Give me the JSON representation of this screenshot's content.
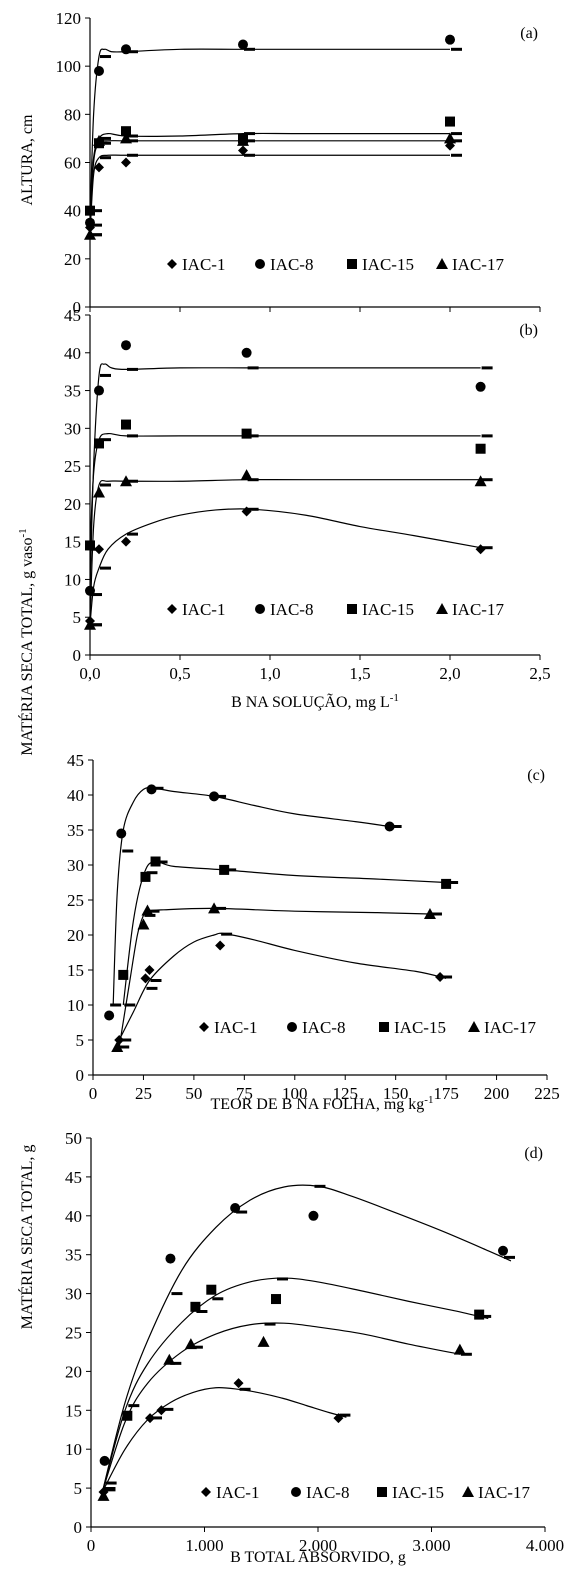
{
  "figure": {
    "ylabel_a": "ALTURA, cm",
    "ylabel_bc": "MATÉRIA SECA TOTAL, g vaso",
    "ylabel_bc_sup": "-1",
    "ylabel_d": "MATÉRIA SECA TOTAL, g",
    "xlabel_b": "B NA SOLUÇÃO, mg L",
    "xlabel_b_sup": "-1",
    "xlabel_c": "TEOR DE B NA FOLHA, mg kg",
    "xlabel_c_sup": "-1",
    "xlabel_d": "B TOTAL ABSORVIDO, g"
  },
  "chart_data": [
    {
      "id": "a",
      "panel_label": "(a)",
      "type": "scatter",
      "xlim": [
        0,
        2.5
      ],
      "ylim": [
        0,
        120
      ],
      "yticks": [
        "0",
        "20",
        "40",
        "60",
        "80",
        "100",
        "120"
      ],
      "xticks": [],
      "legend": "bottom-right",
      "series": [
        {
          "name": "IAC-1",
          "marker": "diamond",
          "x": [
            0.0,
            0.05,
            0.2,
            0.85,
            2.0
          ],
          "y": [
            33,
            58,
            60,
            65,
            67
          ],
          "fit_x": [
            0.0,
            0.02,
            0.05,
            0.1,
            0.2,
            0.5,
            0.85,
            1.2,
            2.0
          ],
          "fit_y": [
            30,
            55,
            62,
            63,
            63,
            63,
            63,
            63,
            63
          ]
        },
        {
          "name": "IAC-8",
          "marker": "circle",
          "x": [
            0.0,
            0.05,
            0.2,
            0.85,
            2.0
          ],
          "y": [
            35,
            98,
            107,
            109,
            111
          ],
          "fit_x": [
            0.0,
            0.02,
            0.05,
            0.08,
            0.12,
            0.2,
            0.5,
            0.85,
            1.2,
            2.0
          ],
          "fit_y": [
            34,
            80,
            104,
            107,
            106,
            106,
            107,
            107,
            107,
            107
          ]
        },
        {
          "name": "IAC-15",
          "marker": "square",
          "x": [
            0.0,
            0.05,
            0.2,
            0.85,
            2.0
          ],
          "y": [
            40,
            68,
            73,
            70,
            77
          ],
          "fit_x": [
            0.0,
            0.02,
            0.05,
            0.1,
            0.2,
            0.5,
            0.85,
            1.2,
            2.0
          ],
          "fit_y": [
            40,
            62,
            70,
            72,
            71,
            71,
            72,
            72,
            72
          ]
        },
        {
          "name": "IAC-17",
          "marker": "triangle",
          "x": [
            0.0,
            0.05,
            0.2,
            0.85,
            2.0
          ],
          "y": [
            30,
            69,
            70,
            69,
            70
          ],
          "fit_x": [
            0.0,
            0.02,
            0.05,
            0.1,
            0.2,
            0.5,
            0.85,
            1.2,
            2.0
          ],
          "fit_y": [
            30,
            60,
            68,
            69,
            69,
            69,
            69,
            69,
            69
          ]
        }
      ]
    },
    {
      "id": "b",
      "panel_label": "(b)",
      "type": "scatter",
      "xlim": [
        0,
        2.5
      ],
      "ylim": [
        0,
        45
      ],
      "yticks": [
        "0",
        "5",
        "10",
        "15",
        "20",
        "25",
        "30",
        "35",
        "40",
        "45"
      ],
      "xticks": [
        "0,0",
        "0,5",
        "1,0",
        "1,5",
        "2,0",
        "2,5"
      ],
      "legend": "bottom-right",
      "series": [
        {
          "name": "IAC-1",
          "marker": "diamond",
          "x": [
            0.0,
            0.05,
            0.2,
            0.87,
            2.17
          ],
          "y": [
            4.5,
            14,
            15,
            19,
            14
          ],
          "fit_x": [
            0.0,
            0.02,
            0.05,
            0.1,
            0.2,
            0.35,
            0.5,
            0.7,
            0.9,
            1.2,
            1.5,
            1.8,
            2.17
          ],
          "fit_y": [
            4,
            9,
            11.5,
            14,
            16,
            17.5,
            18.5,
            19.2,
            19.3,
            18.5,
            17,
            15.8,
            14.2
          ]
        },
        {
          "name": "IAC-8",
          "marker": "circle",
          "x": [
            0.0,
            0.05,
            0.2,
            0.87,
            2.17
          ],
          "y": [
            8.5,
            35,
            41,
            40,
            35.5
          ],
          "fit_x": [
            0.0,
            0.02,
            0.05,
            0.08,
            0.12,
            0.2,
            0.5,
            0.87,
            1.2,
            2.17
          ],
          "fit_y": [
            8,
            25,
            37,
            38.5,
            38,
            37.8,
            38,
            38,
            38,
            38
          ]
        },
        {
          "name": "IAC-15",
          "marker": "square",
          "x": [
            0.0,
            0.05,
            0.2,
            0.87,
            2.17
          ],
          "y": [
            14.5,
            28,
            30.5,
            29.3,
            27.3
          ],
          "fit_x": [
            0.0,
            0.02,
            0.05,
            0.1,
            0.2,
            0.5,
            0.87,
            1.2,
            2.17
          ],
          "fit_y": [
            14,
            24,
            28.5,
            29.3,
            29,
            29,
            29,
            29,
            29
          ]
        },
        {
          "name": "IAC-17",
          "marker": "triangle",
          "x": [
            0.0,
            0.05,
            0.2,
            0.87,
            2.17
          ],
          "y": [
            4,
            21.5,
            23,
            23.8,
            23
          ],
          "fit_x": [
            0.0,
            0.02,
            0.05,
            0.1,
            0.2,
            0.5,
            0.87,
            1.2,
            2.17
          ],
          "fit_y": [
            4,
            17,
            22.5,
            23,
            23,
            23,
            23.2,
            23.2,
            23.2
          ]
        }
      ]
    },
    {
      "id": "c",
      "panel_label": "(c)",
      "type": "scatter",
      "xlim": [
        0,
        225
      ],
      "ylim": [
        0,
        45
      ],
      "yticks": [
        "0",
        "5",
        "10",
        "15",
        "20",
        "25",
        "30",
        "35",
        "40",
        "45"
      ],
      "xticks": [
        "0",
        "25",
        "50",
        "75",
        "100",
        "125",
        "150",
        "175",
        "200",
        "225"
      ],
      "legend": "bottom-right",
      "series": [
        {
          "name": "IAC-1",
          "marker": "diamond",
          "x": [
            13,
            26,
            28,
            63,
            172
          ],
          "y": [
            5,
            13.8,
            15,
            18.5,
            14
          ],
          "fit_x": [
            13,
            20,
            28,
            40,
            50,
            60,
            65,
            80,
            100,
            130,
            160,
            175
          ],
          "fit_y": [
            5,
            9,
            13.5,
            17,
            19,
            20,
            20.2,
            19.3,
            17.8,
            16,
            14.8,
            13.8
          ]
        },
        {
          "name": "IAC-8",
          "marker": "circle",
          "x": [
            8,
            14,
            29,
            60,
            147
          ],
          "y": [
            8.5,
            34.5,
            40.8,
            39.8,
            35.5
          ],
          "fit_x": [
            10,
            12,
            15,
            20,
            25,
            30,
            40,
            60,
            80,
            100,
            130,
            147
          ],
          "fit_y": [
            10,
            26,
            35,
            39,
            40.8,
            41,
            40.5,
            39.8,
            38.5,
            37.3,
            36.2,
            35.5
          ]
        },
        {
          "name": "IAC-15",
          "marker": "square",
          "x": [
            15,
            26,
            31,
            65,
            175
          ],
          "y": [
            14.3,
            28.3,
            30.5,
            29.3,
            27.3
          ],
          "fit_x": [
            15,
            20,
            25,
            30,
            40,
            65,
            100,
            140,
            175
          ],
          "fit_y": [
            10,
            22,
            28.5,
            30.5,
            29.8,
            29.3,
            28.5,
            28,
            27.5
          ]
        },
        {
          "name": "IAC-17",
          "marker": "triangle",
          "x": [
            12,
            25,
            27,
            60,
            167
          ],
          "y": [
            4,
            21.5,
            23.5,
            23.8,
            23
          ],
          "fit_x": [
            13,
            18,
            22,
            25,
            27,
            35,
            60,
            100,
            140,
            167
          ],
          "fit_y": [
            4,
            13,
            20,
            22.8,
            23.4,
            23.6,
            23.8,
            23.4,
            23.2,
            23
          ]
        }
      ]
    },
    {
      "id": "d",
      "panel_label": "(d)",
      "type": "scatter",
      "xlim": [
        0,
        4000
      ],
      "ylim": [
        0,
        50
      ],
      "yticks": [
        "0",
        "5",
        "10",
        "15",
        "20",
        "25",
        "30",
        "35",
        "40",
        "45",
        "50"
      ],
      "xticks": [
        "0",
        "1.000",
        "2.000",
        "3.000",
        "4.000"
      ],
      "legend": "bottom-right",
      "series": [
        {
          "name": "IAC-1",
          "marker": "diamond",
          "x": [
            110,
            520,
            620,
            1300,
            2180
          ],
          "y": [
            4.5,
            14,
            15,
            18.5,
            14
          ],
          "fit_x": [
            100,
            300,
            500,
            700,
            900,
            1100,
            1300,
            1500,
            1700,
            1900,
            2100,
            2250
          ],
          "fit_y": [
            4.5,
            10,
            13.8,
            16,
            17.3,
            17.9,
            17.7,
            17.2,
            16.5,
            15.6,
            14.7,
            14.1
          ]
        },
        {
          "name": "IAC-8",
          "marker": "circle",
          "x": [
            120,
            700,
            1270,
            1960,
            3630
          ],
          "y": [
            8.5,
            34.5,
            41,
            40,
            35.5
          ],
          "fit_x": [
            100,
            300,
            500,
            800,
            1100,
            1400,
            1700,
            2000,
            2300,
            2700,
            3100,
            3500,
            3700
          ],
          "fit_y": [
            4.5,
            16,
            24,
            33,
            38.5,
            42,
            43.7,
            43.8,
            42.5,
            40.3,
            38,
            35.5,
            34.2
          ]
        },
        {
          "name": "IAC-15",
          "marker": "square",
          "x": [
            320,
            920,
            1060,
            1630,
            3420
          ],
          "y": [
            14.3,
            28.3,
            30.5,
            29.3,
            27.3
          ],
          "fit_x": [
            100,
            300,
            500,
            800,
            1100,
            1400,
            1700,
            2000,
            2400,
            2800,
            3200,
            3500
          ],
          "fit_y": [
            4.5,
            15,
            21,
            26.3,
            29.8,
            31.5,
            32,
            31.5,
            30.3,
            29,
            27.8,
            26.8
          ]
        },
        {
          "name": "IAC-17",
          "marker": "triangle",
          "x": [
            110,
            690,
            880,
            1520,
            3250
          ],
          "y": [
            4,
            21.5,
            23.5,
            23.8,
            22.8
          ],
          "fit_x": [
            100,
            300,
            500,
            800,
            1100,
            1400,
            1700,
            2000,
            2400,
            2800,
            3250
          ],
          "fit_y": [
            4.5,
            13.5,
            18.5,
            22.5,
            24.8,
            26,
            26.2,
            25.7,
            24.8,
            23.5,
            22.2
          ]
        }
      ]
    }
  ]
}
